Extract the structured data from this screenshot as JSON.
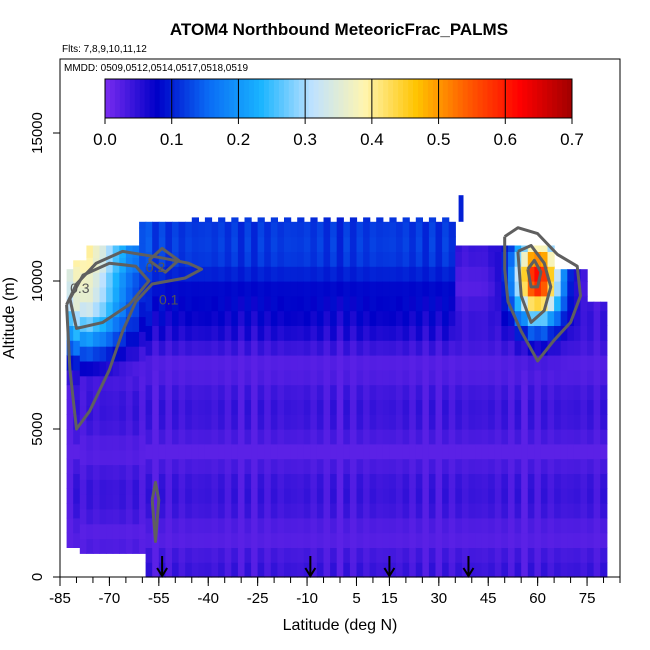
{
  "chart_data": {
    "type": "heatmap",
    "title": "ATOM4 Northbound MeteoricFrac_PALMS",
    "subtitle_flights": "Flts: 7,8,9,10,11,12",
    "subtitle_dates": "MMDD: 0509,0512,0514,0517,0518,0519",
    "xlabel": "Latitude (deg N)",
    "ylabel": "Altitude (m)",
    "xlim": [
      -85,
      85
    ],
    "ylim": [
      0,
      17500
    ],
    "x_ticks_major": [
      -85,
      -70,
      -55,
      -40,
      -25,
      -10,
      5,
      15,
      30,
      45,
      60,
      75
    ],
    "x_tick_labels": [
      "-85",
      "-70",
      "-55",
      "-40",
      "-25",
      "-10",
      "5",
      "15",
      "30",
      "45",
      "60",
      "75"
    ],
    "y_ticks": [
      0,
      5000,
      10000,
      15000
    ],
    "y_tick_labels": [
      "0",
      "5000",
      "10000",
      "15000"
    ],
    "colorbar": {
      "range": [
        0,
        0.7
      ],
      "ticks": [
        0.0,
        0.1,
        0.2,
        0.3,
        0.4,
        0.5,
        0.6,
        0.7
      ],
      "tick_labels": [
        "0.0",
        "0.1",
        "0.2",
        "0.3",
        "0.4",
        "0.5",
        "0.6",
        "0.7"
      ],
      "colors": [
        "#7b2cf0",
        "#0000c8",
        "#0a6cf5",
        "#19b4ff",
        "#bfe2ff",
        "#fff5b0",
        "#ffc400",
        "#ff5a00",
        "#ff0000",
        "#a00000"
      ]
    },
    "contour_labels": [
      "0.2",
      "0.3",
      "0.1"
    ],
    "contour_levels": [
      0.1,
      0.2,
      0.3,
      0.4,
      0.5
    ],
    "arrow_latitudes": [
      -54,
      -9,
      15,
      39
    ],
    "grid": false,
    "legend": "colorbar-top"
  }
}
